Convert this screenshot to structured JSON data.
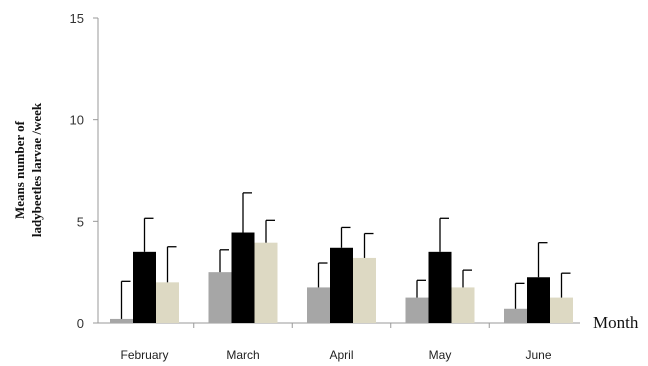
{
  "chart_data": {
    "type": "bar",
    "title": "",
    "ylabel_lines": [
      "Means number of",
      "ladybeetles larvae /week"
    ],
    "xlabel": "Month",
    "ylim": [
      0,
      15
    ],
    "yticks": [
      0,
      5,
      10,
      15
    ],
    "categories": [
      "February",
      "March",
      "April",
      "May",
      "June"
    ],
    "series": [
      {
        "color": "#a6a6a6",
        "values": [
          0.2,
          2.5,
          1.75,
          1.25,
          0.7
        ],
        "errors": [
          1.85,
          1.1,
          1.2,
          0.85,
          1.25
        ]
      },
      {
        "color": "#000000",
        "values": [
          3.5,
          4.45,
          3.7,
          3.5,
          2.25
        ],
        "errors": [
          1.65,
          1.95,
          1.0,
          1.65,
          1.7
        ]
      },
      {
        "color": "#ddd9c3",
        "values": [
          2.0,
          3.95,
          3.2,
          1.75,
          1.25
        ],
        "errors": [
          1.75,
          1.1,
          1.2,
          0.85,
          1.2
        ]
      }
    ],
    "legend": false,
    "grid": false
  }
}
